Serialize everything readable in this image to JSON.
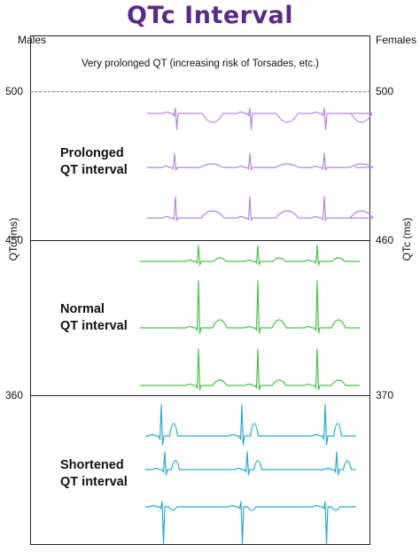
{
  "title": "QTc Interval",
  "left_axis": {
    "header": "Males",
    "label": "QTc (ms)",
    "ticks": [
      "500",
      "450",
      "360"
    ]
  },
  "right_axis": {
    "header": "Females",
    "label": "QTc (ms)",
    "ticks": [
      "500",
      "460",
      "370"
    ]
  },
  "note": "Very prolonged QT (increasing risk of Torsades, etc.)",
  "zones": [
    {
      "line1": "Prolonged",
      "line2": "QT interval",
      "color": "#b487d9"
    },
    {
      "line1": "Normal",
      "line2": "QT interval",
      "color": "#4cbf4c"
    },
    {
      "line1": "Shortened",
      "line2": "QT interval",
      "color": "#2ea9cc"
    }
  ]
}
